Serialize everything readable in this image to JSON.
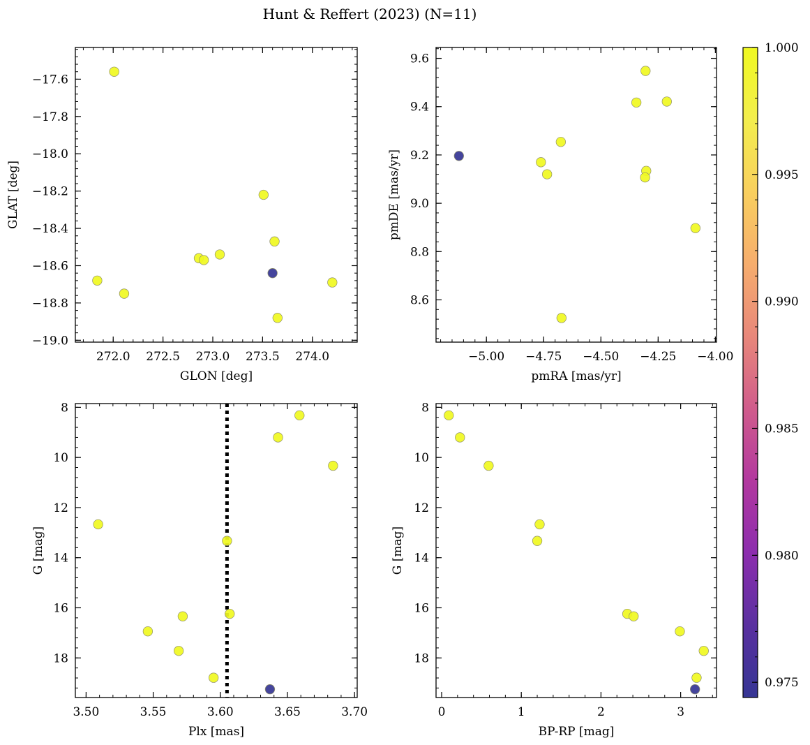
{
  "figure": {
    "title": "Hunt & Reffert (2023) (N=11)"
  },
  "colors": {
    "high": "#F0F921",
    "low": "#353594",
    "colormap": [
      "#353594",
      "#5A30A0",
      "#8C2DAE",
      "#B2389F",
      "#D05C8C",
      "#E8877A",
      "#F6AD6D",
      "#F9CF5E",
      "#F3EE4D",
      "#F0F921"
    ],
    "edge": "#8F8F6A",
    "guide_line": "#000000"
  },
  "colorbar": {
    "min": 0.9744,
    "max": 1.0,
    "ticks": [
      0.975,
      0.98,
      0.985,
      0.99,
      0.995,
      1.0
    ],
    "tick_labels": [
      "0.975",
      "0.980",
      "0.985",
      "0.990",
      "0.995",
      "1.000"
    ]
  },
  "chart_data": [
    {
      "type": "scatter",
      "xlabel": "GLON [deg]",
      "ylabel": "GLAT [deg]",
      "xlim": [
        271.62,
        274.45
      ],
      "ylim": [
        -19.01,
        -17.43
      ],
      "xticks": [
        272.0,
        272.5,
        273.0,
        273.5,
        274.0
      ],
      "xtick_labels": [
        "272.0",
        "272.5",
        "273.0",
        "273.5",
        "274.0"
      ],
      "yticks": [
        -19.0,
        -18.8,
        -18.6,
        -18.4,
        -18.2,
        -18.0,
        -17.8,
        -17.6
      ],
      "ytick_labels": [
        "−19.0",
        "−18.8",
        "−18.6",
        "−18.4",
        "−18.2",
        "−18.0",
        "−17.8",
        "−17.6"
      ],
      "x": [
        272.01,
        271.84,
        272.11,
        272.86,
        272.91,
        273.07,
        273.51,
        273.62,
        273.6,
        273.65,
        274.2
      ],
      "y": [
        -17.56,
        -18.68,
        -18.75,
        -18.56,
        -18.57,
        -18.54,
        -18.22,
        -18.47,
        -18.64,
        -18.88,
        -18.69
      ],
      "c": [
        1,
        1,
        1,
        1,
        1,
        1,
        1,
        1,
        0.9744,
        1,
        1
      ]
    },
    {
      "type": "scatter",
      "xlabel": "pmRA [mas/yr]",
      "ylabel": "pmDE [mas/yr]",
      "xlim": [
        -5.22,
        -3.995
      ],
      "ylim": [
        8.425,
        9.645
      ],
      "xticks": [
        -5.0,
        -4.75,
        -4.5,
        -4.25,
        -4.0
      ],
      "xtick_labels": [
        "−5.00",
        "−4.75",
        "−4.50",
        "−4.25",
        "−4.00"
      ],
      "yticks": [
        8.6,
        8.8,
        9.0,
        9.2,
        9.4,
        9.6
      ],
      "ytick_labels": [
        "8.6",
        "8.8",
        "9.0",
        "9.2",
        "9.4",
        "9.6"
      ],
      "x": [
        -5.12,
        -4.762,
        -4.735,
        -4.675,
        -4.672,
        -4.345,
        -4.305,
        -4.302,
        -4.307,
        -4.212,
        -4.087
      ],
      "y": [
        9.196,
        9.17,
        9.12,
        9.254,
        8.525,
        9.417,
        9.548,
        9.134,
        9.107,
        9.421,
        8.897
      ],
      "c": [
        0.9744,
        1,
        1,
        1,
        1,
        1,
        1,
        1,
        1,
        1,
        1
      ]
    },
    {
      "type": "scatter",
      "xlabel": "Plx [mas]",
      "ylabel": "G [mag]",
      "xlim": [
        3.492,
        3.702
      ],
      "ylim": [
        19.58,
        7.85
      ],
      "xticks": [
        3.5,
        3.55,
        3.6,
        3.65,
        3.7
      ],
      "xtick_labels": [
        "3.50",
        "3.55",
        "3.60",
        "3.65",
        "3.70"
      ],
      "yticks": [
        8,
        10,
        12,
        14,
        16,
        18
      ],
      "ytick_labels": [
        "8",
        "10",
        "12",
        "14",
        "16",
        "18"
      ],
      "x": [
        3.509,
        3.546,
        3.569,
        3.572,
        3.595,
        3.605,
        3.607,
        3.643,
        3.659,
        3.684,
        3.637
      ],
      "y": [
        12.67,
        16.94,
        17.72,
        16.34,
        18.79,
        13.33,
        16.24,
        9.2,
        8.32,
        10.33,
        19.25
      ],
      "c": [
        1,
        1,
        1,
        1,
        1,
        1,
        1,
        1,
        1,
        1,
        0.9744
      ],
      "vline_x": 3.605
    },
    {
      "type": "scatter",
      "xlabel": "BP-RP [mag]",
      "ylabel": "G [mag]",
      "xlim": [
        -0.07,
        3.45
      ],
      "ylim": [
        19.58,
        7.85
      ],
      "xticks": [
        0,
        1,
        2,
        3
      ],
      "xtick_labels": [
        "0",
        "1",
        "2",
        "3"
      ],
      "yticks": [
        8,
        10,
        12,
        14,
        16,
        18
      ],
      "ytick_labels": [
        "8",
        "10",
        "12",
        "14",
        "16",
        "18"
      ],
      "x": [
        0.09,
        0.23,
        0.59,
        1.23,
        1.2,
        2.33,
        2.41,
        2.99,
        3.29,
        3.2,
        3.18
      ],
      "y": [
        8.32,
        9.2,
        10.33,
        12.67,
        13.33,
        16.24,
        16.34,
        16.94,
        17.72,
        18.79,
        19.25
      ],
      "c": [
        1,
        1,
        1,
        1,
        1,
        1,
        1,
        1,
        1,
        1,
        0.9744
      ]
    }
  ]
}
